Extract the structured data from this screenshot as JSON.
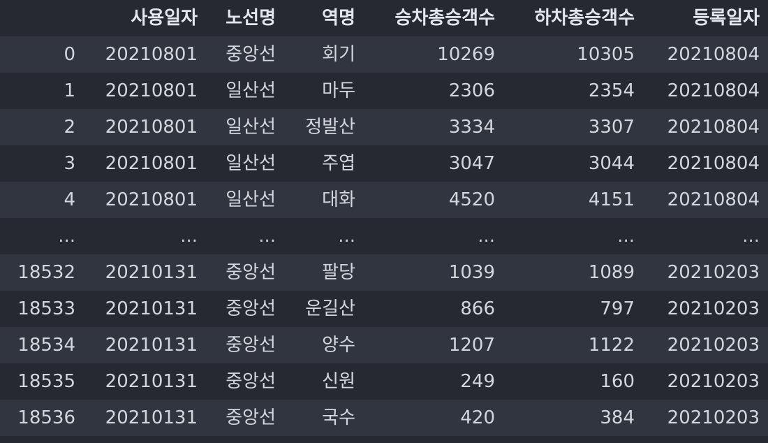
{
  "table": {
    "columns": [
      "",
      "사용일자",
      "노선명",
      "역명",
      "승차총승객수",
      "하차총승객수",
      "등록일자"
    ],
    "rows": [
      [
        "0",
        "20210801",
        "중앙선",
        "회기",
        "10269",
        "10305",
        "20210804"
      ],
      [
        "1",
        "20210801",
        "일산선",
        "마두",
        "2306",
        "2354",
        "20210804"
      ],
      [
        "2",
        "20210801",
        "일산선",
        "정발산",
        "3334",
        "3307",
        "20210804"
      ],
      [
        "3",
        "20210801",
        "일산선",
        "주엽",
        "3047",
        "3044",
        "20210804"
      ],
      [
        "4",
        "20210801",
        "일산선",
        "대화",
        "4520",
        "4151",
        "20210804"
      ],
      [
        "...",
        "...",
        "...",
        "...",
        "...",
        "...",
        "..."
      ],
      [
        "18532",
        "20210131",
        "중앙선",
        "팔당",
        "1039",
        "1089",
        "20210203"
      ],
      [
        "18533",
        "20210131",
        "중앙선",
        "운길산",
        "866",
        "797",
        "20210203"
      ],
      [
        "18534",
        "20210131",
        "중앙선",
        "양수",
        "1207",
        "1122",
        "20210203"
      ],
      [
        "18535",
        "20210131",
        "중앙선",
        "신원",
        "249",
        "160",
        "20210203"
      ],
      [
        "18536",
        "20210131",
        "중앙선",
        "국수",
        "420",
        "384",
        "20210203"
      ]
    ]
  }
}
